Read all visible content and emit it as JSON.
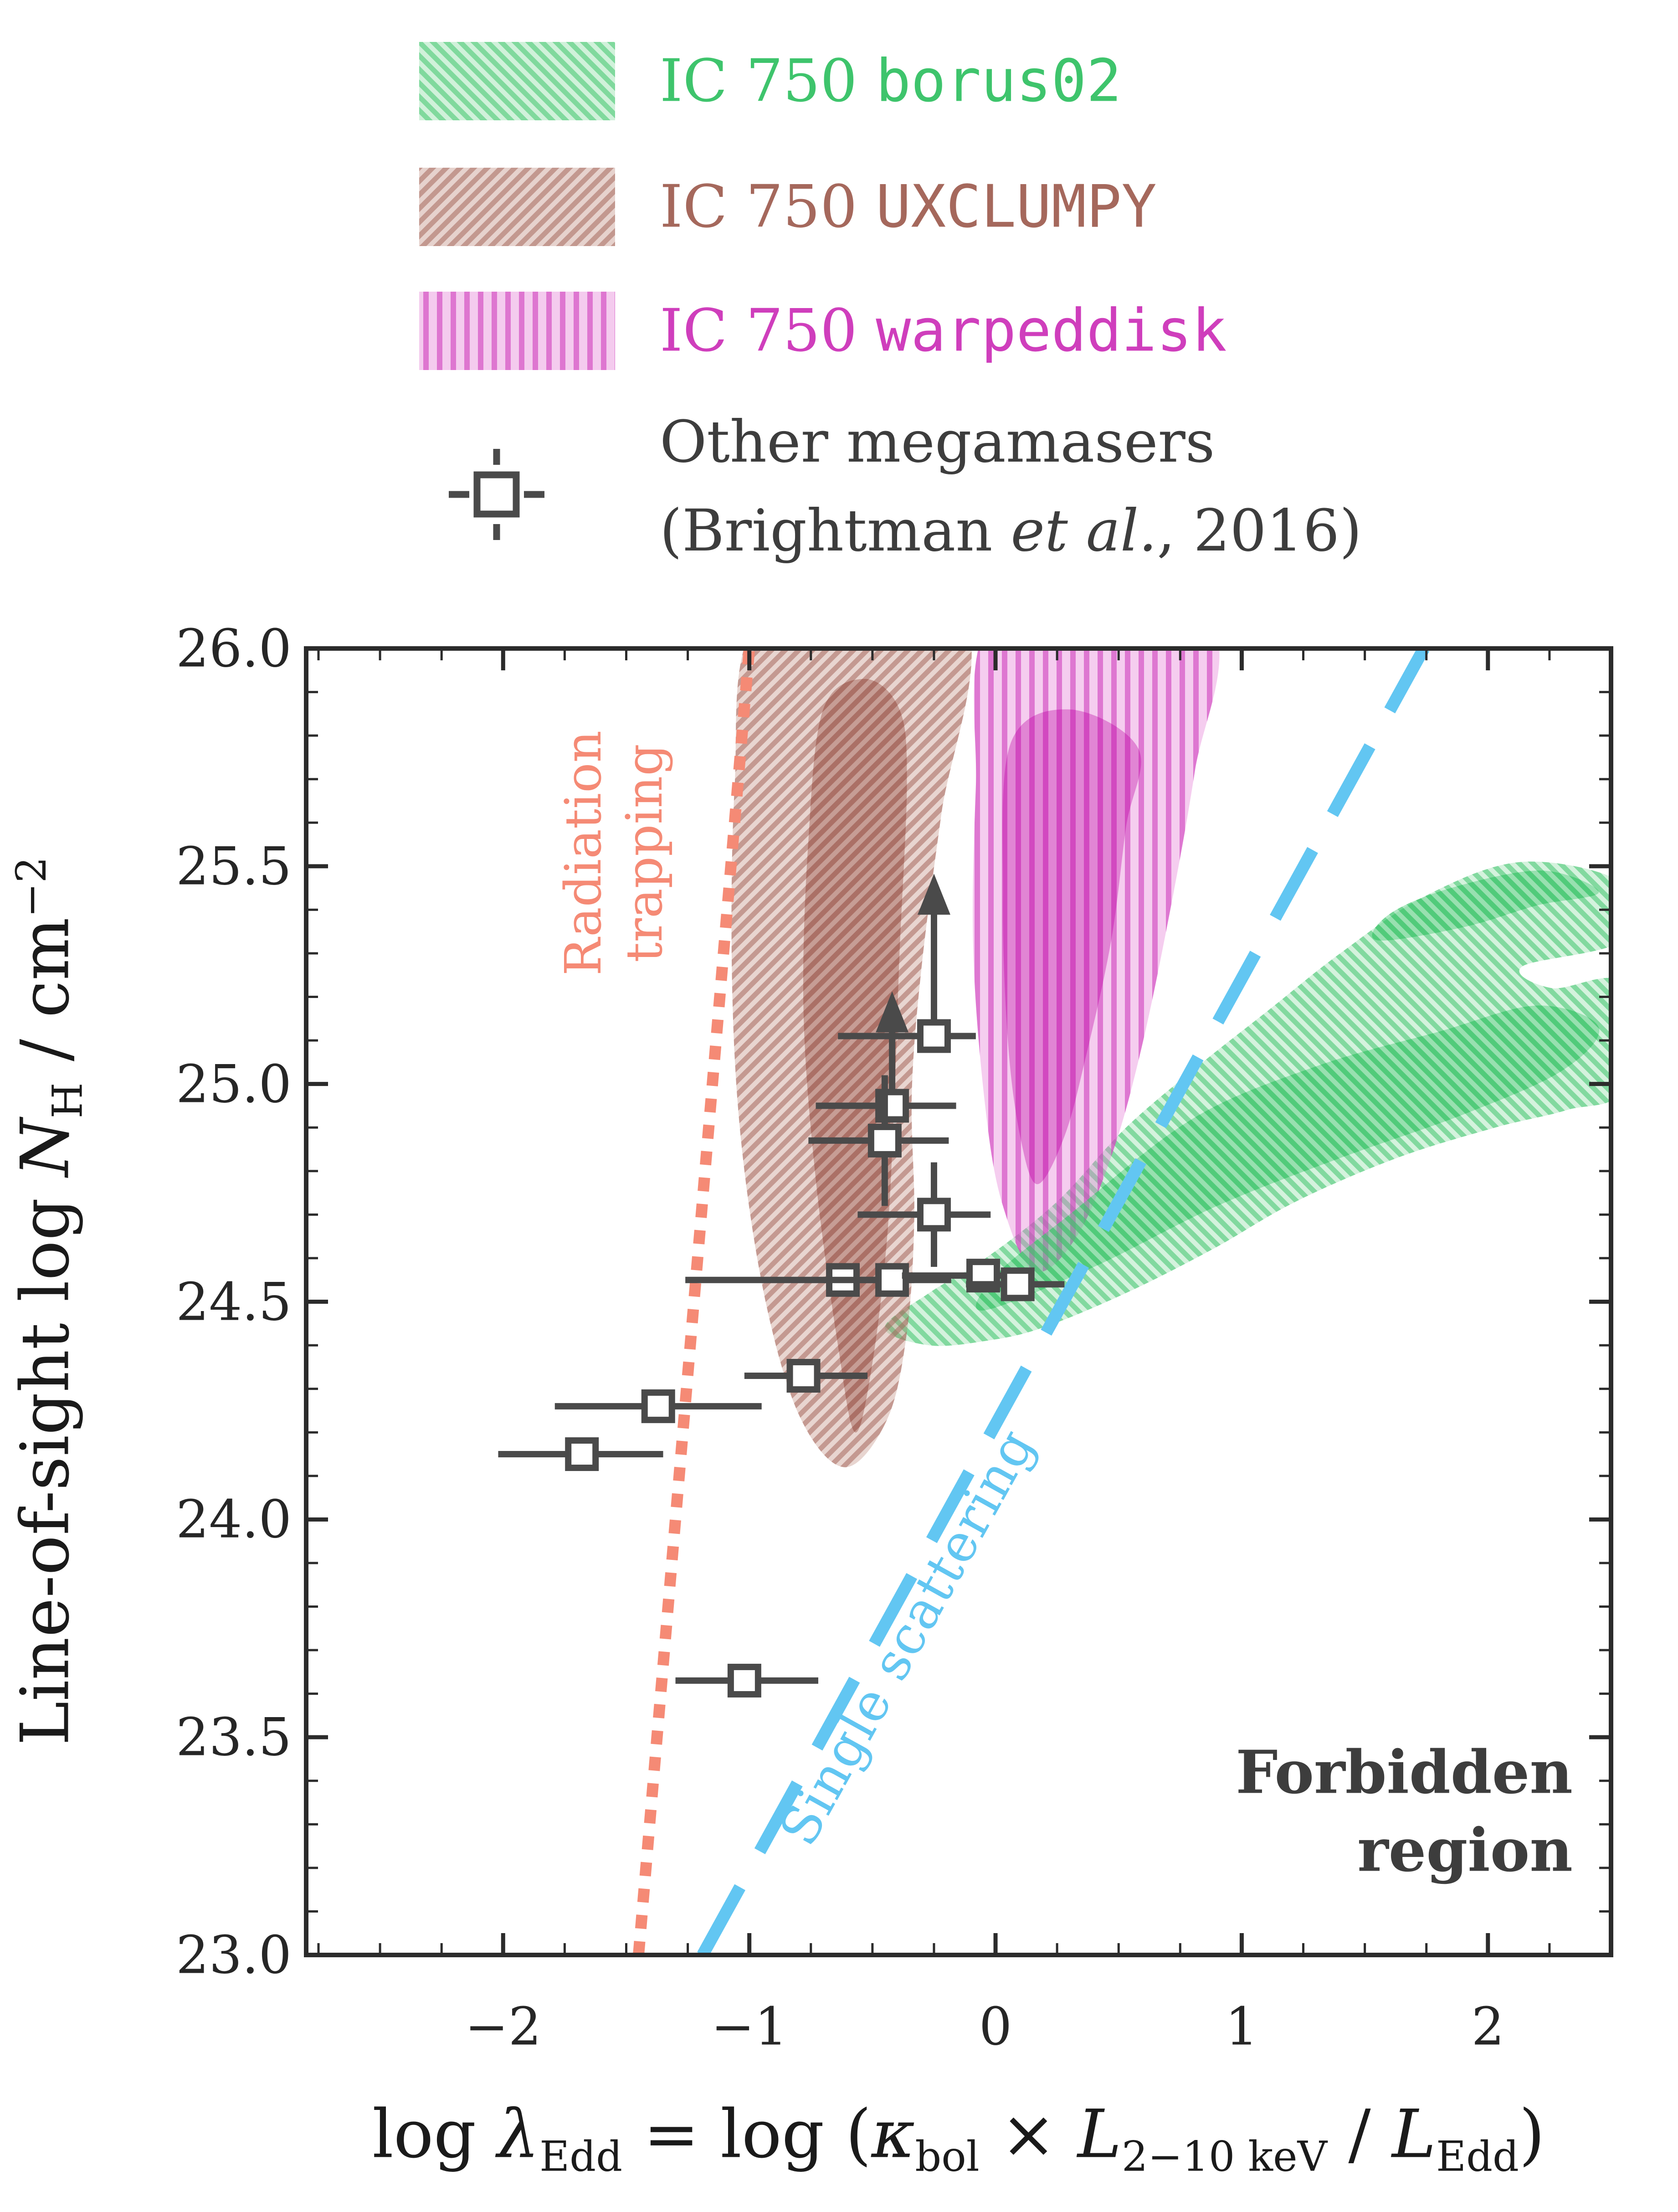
{
  "figure": {
    "bg": "#ffffff"
  },
  "legend": {
    "items": [
      {
        "prefix": "IC 750 ",
        "model": "borus02",
        "color": "#3ec46c",
        "swatch_fill": "rgba(120,214,150,0.35)"
      },
      {
        "prefix": "IC 750 ",
        "model": "UXCLUMPY",
        "color": "#a5685c",
        "swatch_fill": "rgba(178,116,100,0.32)"
      },
      {
        "prefix": "IC 750 ",
        "model": "warpeddisk",
        "color": "#cf3ebc",
        "swatch_fill": "rgba(228,124,212,0.40)"
      }
    ],
    "megamasers": {
      "line1": "Other megamasers",
      "line2": "(Brightman *et al.*, 2016)"
    }
  },
  "chart_data": {
    "type": "scatter",
    "xlabel": "log *λ*_{Edd} = log (*κ*_{bol} × *L*_{2−10 keV} / *L*_{Edd})",
    "ylabel": "Line-of-sight log *N*_{H} / cm^{−2}",
    "xlim": [
      -2.8,
      2.5
    ],
    "ylim": [
      23.0,
      26.0
    ],
    "x_ticks": [
      {
        "v": -2,
        "label": "−2"
      },
      {
        "v": -1,
        "label": "−1"
      },
      {
        "v": 0,
        "label": "0"
      },
      {
        "v": 1,
        "label": "1"
      },
      {
        "v": 2,
        "label": "2"
      }
    ],
    "x_minor_step": 0.25,
    "y_ticks": [
      {
        "v": 23.0,
        "label": "23.0"
      },
      {
        "v": 23.5,
        "label": "23.5"
      },
      {
        "v": 24.0,
        "label": "24.0"
      },
      {
        "v": 24.5,
        "label": "24.5"
      },
      {
        "v": 25.0,
        "label": "25.0"
      },
      {
        "v": 25.5,
        "label": "25.5"
      },
      {
        "v": 26.0,
        "label": "26.0"
      }
    ],
    "y_minor_step": 0.1,
    "hatch_colors": {
      "patGreen": "rgba(62,196,108,0.55)",
      "patBrown": "rgba(165,104,92,0.55)",
      "patMagenta": "rgba(207,62,188,0.60)"
    },
    "lines": [
      {
        "name": "radiation-trapping-line",
        "color": "#f58a75",
        "width": 25,
        "dash": "30 28",
        "points": [
          [
            -1.45,
            23.0
          ],
          [
            -1.0,
            26.0
          ]
        ]
      },
      {
        "name": "single-scattering-line",
        "color": "#62c6f2",
        "width": 27,
        "dash": "170 90",
        "points": [
          [
            -1.19,
            23.0
          ],
          [
            1.74,
            26.0
          ]
        ]
      }
    ],
    "annotations": [
      {
        "name": "radiation-trapping-label",
        "text": "Radiation\ntrapping",
        "x": -1.55,
        "y": 25.53,
        "rotate": -90,
        "color": "#f58a75"
      },
      {
        "name": "single-scattering-label",
        "text": "Single scattering",
        "x": -0.36,
        "y": 23.73,
        "rotate": -61,
        "color": "#62c6f2"
      },
      {
        "name": "forbidden-region-label",
        "text": "Forbidden\nregion",
        "x": 1.66,
        "y": 23.33,
        "rotate": 0,
        "color": "#3d3d3d"
      }
    ],
    "regions": [
      {
        "name": "borus02-outer",
        "fill": "rgba(120,214,150,0.32)",
        "hatch": "patGreen",
        "points": [
          [
            -0.45,
            24.44
          ],
          [
            -0.27,
            24.4
          ],
          [
            -0.04,
            24.41
          ],
          [
            0.19,
            24.44
          ],
          [
            0.53,
            24.52
          ],
          [
            0.88,
            24.62
          ],
          [
            1.22,
            24.73
          ],
          [
            1.63,
            24.83
          ],
          [
            2.03,
            24.9
          ],
          [
            2.32,
            24.94
          ],
          [
            2.55,
            24.99
          ],
          [
            2.55,
            25.23
          ],
          [
            2.26,
            25.22
          ],
          [
            2.14,
            25.27
          ],
          [
            2.55,
            25.33
          ],
          [
            2.55,
            25.46
          ],
          [
            2.14,
            25.51
          ],
          [
            1.74,
            25.43
          ],
          [
            1.4,
            25.3
          ],
          [
            1.11,
            25.17
          ],
          [
            0.82,
            25.04
          ],
          [
            0.53,
            24.9
          ],
          [
            0.25,
            24.73
          ],
          [
            -0.04,
            24.6
          ],
          [
            -0.27,
            24.52
          ]
        ]
      },
      {
        "name": "uxclumpy-outer",
        "fill": "rgba(178,116,100,0.30)",
        "hatch": "patBrown",
        "points": [
          [
            -0.99,
            26.05
          ],
          [
            -1.06,
            25.68
          ],
          [
            -1.07,
            25.23
          ],
          [
            -1.03,
            24.85
          ],
          [
            -0.93,
            24.49
          ],
          [
            -0.79,
            24.23
          ],
          [
            -0.61,
            24.12
          ],
          [
            -0.44,
            24.23
          ],
          [
            -0.36,
            24.43
          ],
          [
            -0.33,
            24.69
          ],
          [
            -0.34,
            24.98
          ],
          [
            -0.3,
            25.27
          ],
          [
            -0.22,
            25.62
          ],
          [
            -0.11,
            26.05
          ],
          [
            -0.55,
            26.3
          ]
        ]
      },
      {
        "name": "warpeddisk-outer",
        "fill": "rgba(228,124,212,0.38)",
        "hatch": "patMagenta",
        "points": [
          [
            -0.04,
            26.05
          ],
          [
            -0.08,
            25.68
          ],
          [
            -0.09,
            25.3
          ],
          [
            -0.04,
            24.94
          ],
          [
            0.03,
            24.72
          ],
          [
            0.16,
            24.57
          ],
          [
            0.33,
            24.65
          ],
          [
            0.48,
            24.85
          ],
          [
            0.6,
            25.1
          ],
          [
            0.72,
            25.43
          ],
          [
            0.81,
            25.72
          ],
          [
            0.89,
            26.05
          ],
          [
            0.42,
            26.3
          ]
        ]
      },
      {
        "name": "borus02-inner",
        "fill": "rgba(70,200,115,0.42)",
        "hatch": "patGreen",
        "points": [
          [
            -0.05,
            24.48
          ],
          [
            0.4,
            24.58
          ],
          [
            0.9,
            24.72
          ],
          [
            1.4,
            24.83
          ],
          [
            1.9,
            24.93
          ],
          [
            2.3,
            25.03
          ],
          [
            2.45,
            25.13
          ],
          [
            2.2,
            25.18
          ],
          [
            1.8,
            25.12
          ],
          [
            1.3,
            25.04
          ],
          [
            0.8,
            24.92
          ],
          [
            0.3,
            24.7
          ],
          [
            0.0,
            24.56
          ]
        ]
      },
      {
        "name": "borus02-inner-lobe",
        "fill": "rgba(70,200,115,0.42)",
        "hatch": "patGreen",
        "points": [
          [
            1.55,
            25.33
          ],
          [
            1.9,
            25.36
          ],
          [
            2.2,
            25.41
          ],
          [
            2.45,
            25.44
          ],
          [
            2.22,
            25.49
          ],
          [
            1.85,
            25.45
          ],
          [
            1.6,
            25.39
          ]
        ]
      },
      {
        "name": "uxclumpy-inner",
        "fill": "rgba(150,82,66,0.42)",
        "hatch": "patBrown",
        "points": [
          [
            -0.7,
            25.86
          ],
          [
            -0.76,
            25.56
          ],
          [
            -0.78,
            25.17
          ],
          [
            -0.73,
            24.78
          ],
          [
            -0.64,
            24.4
          ],
          [
            -0.57,
            24.2
          ],
          [
            -0.5,
            24.36
          ],
          [
            -0.44,
            24.65
          ],
          [
            -0.41,
            24.98
          ],
          [
            -0.39,
            25.3
          ],
          [
            -0.36,
            25.69
          ],
          [
            -0.39,
            25.86
          ],
          [
            -0.53,
            25.93
          ]
        ]
      },
      {
        "name": "warpeddisk-inner",
        "fill": "rgba(205,62,185,0.50)",
        "hatch": "patMagenta",
        "points": [
          [
            0.06,
            25.78
          ],
          [
            0.03,
            25.43
          ],
          [
            0.05,
            25.1
          ],
          [
            0.1,
            24.88
          ],
          [
            0.17,
            24.77
          ],
          [
            0.28,
            24.88
          ],
          [
            0.37,
            25.07
          ],
          [
            0.47,
            25.33
          ],
          [
            0.53,
            25.59
          ],
          [
            0.58,
            25.77
          ],
          [
            0.3,
            25.86
          ]
        ]
      }
    ],
    "points": [
      {
        "x": -0.25,
        "y": 25.11,
        "xlo": -0.64,
        "xhi": -0.08,
        "arrow_to": 25.42
      },
      {
        "x": -0.42,
        "y": 24.95,
        "xlo": -0.73,
        "xhi": -0.16,
        "arrow_to": 25.15
      },
      {
        "x": -0.45,
        "y": 24.87,
        "xlo": -0.76,
        "xhi": -0.19,
        "ylo": 24.72,
        "yhi": 25.02
      },
      {
        "x": -0.25,
        "y": 24.7,
        "xlo": -0.56,
        "xhi": -0.02,
        "ylo": 24.58,
        "yhi": 24.82
      },
      {
        "x": -0.62,
        "y": 24.55,
        "xlo": -1.26,
        "xhi": -0.33
      },
      {
        "x": -0.42,
        "y": 24.55,
        "xlo": -0.7,
        "xhi": -0.18
      },
      {
        "x": -0.05,
        "y": 24.56,
        "xlo": -0.38,
        "xhi": 0.12
      },
      {
        "x": 0.09,
        "y": 24.54,
        "xlo": -0.12,
        "xhi": 0.28
      },
      {
        "x": -0.78,
        "y": 24.33,
        "xlo": -1.02,
        "xhi": -0.52
      },
      {
        "x": -1.37,
        "y": 24.26,
        "xlo": -1.79,
        "xhi": -0.95
      },
      {
        "x": -1.68,
        "y": 24.15,
        "xlo": -2.02,
        "xhi": -1.35
      },
      {
        "x": -1.02,
        "y": 23.63,
        "xlo": -1.3,
        "xhi": -0.72
      }
    ],
    "marker": {
      "size": 60,
      "stroke": "#4a4a4a",
      "stroke_width": 14
    },
    "frame_color": "#2b2b2b"
  }
}
